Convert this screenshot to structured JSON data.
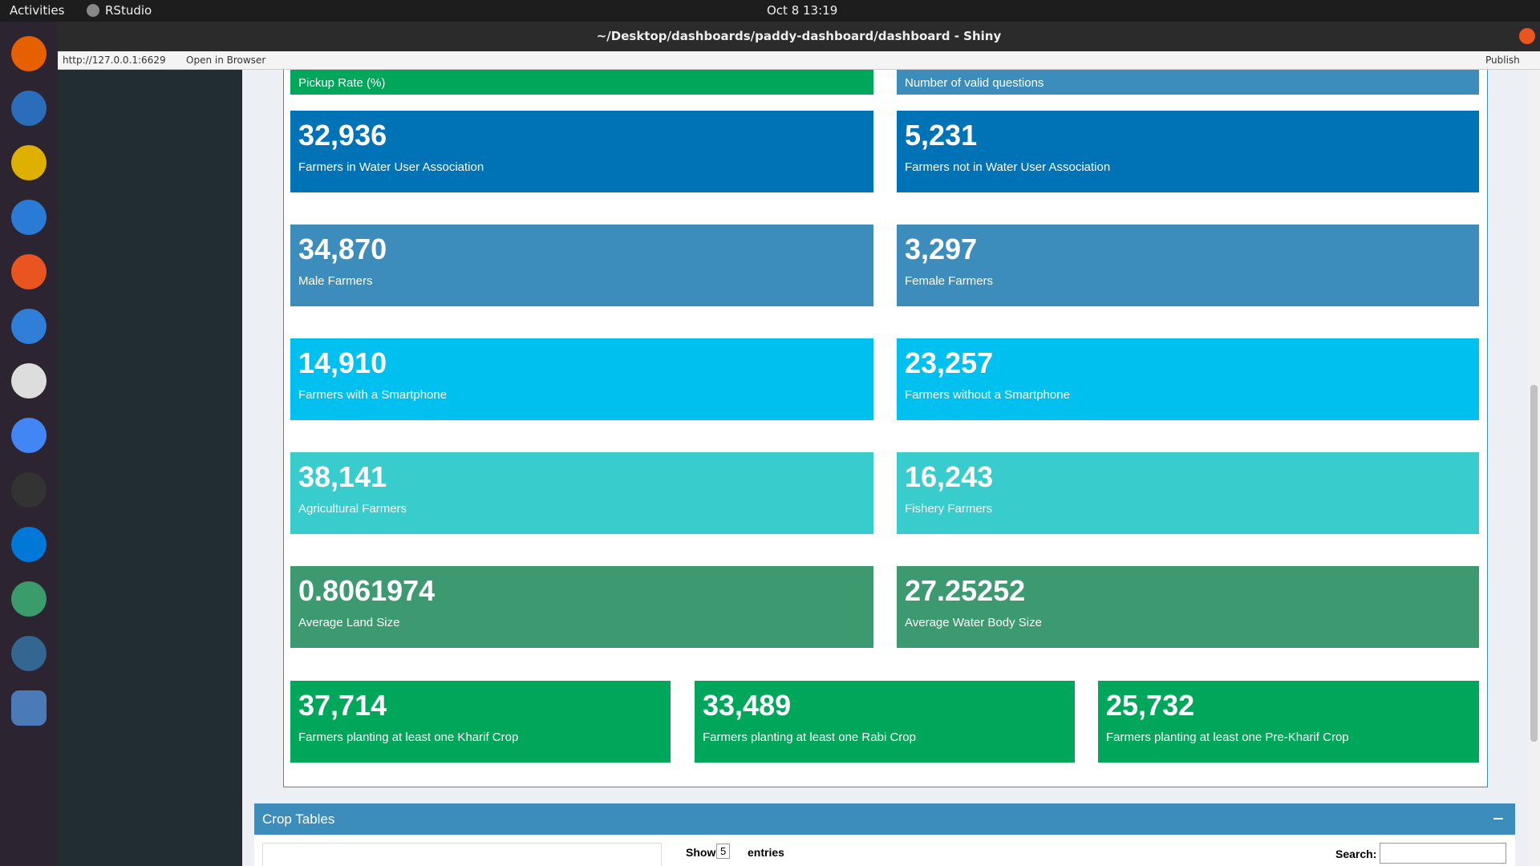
{
  "top_bar": {
    "activities": "Activities",
    "app": "RStudio",
    "clock": "Oct 8  13:19"
  },
  "window": {
    "title": "~/Desktop/dashboards/paddy-dashboard/dashboard - Shiny"
  },
  "address_bar": {
    "url": "http://127.0.0.1:6629",
    "open": "Open in Browser",
    "publish": "Publish"
  },
  "value_boxes": [
    {
      "value": "",
      "label": "Pickup Rate (%)",
      "color": "#00a65a"
    },
    {
      "value": "",
      "label": "Number of valid questions",
      "color": "#3c8dbc"
    },
    {
      "value": "32,936",
      "label": "Farmers in Water User Association",
      "color": "#0073b7"
    },
    {
      "value": "5,231",
      "label": "Farmers not in Water User Association",
      "color": "#0073b7"
    },
    {
      "value": "34,870",
      "label": "Male Farmers",
      "color": "#3c8dbc"
    },
    {
      "value": "3,297",
      "label": "Female Farmers",
      "color": "#3c8dbc"
    },
    {
      "value": "14,910",
      "label": "Farmers with a Smartphone",
      "color": "#00c0ef"
    },
    {
      "value": "23,257",
      "label": "Farmers without a Smartphone",
      "color": "#00c0ef"
    },
    {
      "value": "38,141",
      "label": "Agricultural Farmers",
      "color": "#39cccc"
    },
    {
      "value": "16,243",
      "label": "Fishery Farmers",
      "color": "#39cccc"
    },
    {
      "value": "0.8061974",
      "label": "Average Land Size",
      "color": "#3d9970"
    },
    {
      "value": "27.25252",
      "label": "Average Water Body Size",
      "color": "#3d9970"
    },
    {
      "value": "37,714",
      "label": "Farmers planting at least one Kharif Crop",
      "color": "#00a65a"
    },
    {
      "value": "33,489",
      "label": "Farmers planting at least one Rabi Crop",
      "color": "#00a65a"
    },
    {
      "value": "25,732",
      "label": "Farmers planting at least one Pre-Kharif Crop",
      "color": "#00a65a"
    }
  ],
  "crop_tables": {
    "title": "Crop Tables",
    "show": "Show",
    "entries_count": "5",
    "entries": "entries",
    "search": "Search:"
  }
}
